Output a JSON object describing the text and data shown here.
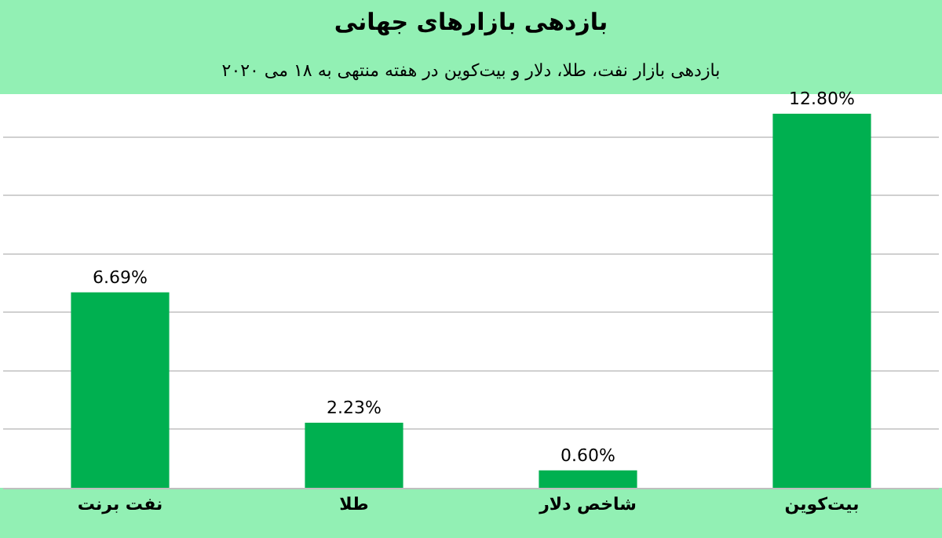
{
  "chart_data": {
    "type": "bar",
    "title": "بازدهی بازارهای جهانی",
    "subtitle": "بازدهی بازار نفت، طلا، دلار و بیت‌کوین در هفته منتهی به ۱۸ می ۲۰۲۰",
    "categories": [
      "نفت برنت",
      "طلا",
      "شاخص دلار",
      "بیت‌کوین"
    ],
    "values": [
      6.69,
      2.23,
      0.6,
      12.8
    ],
    "value_labels": [
      "6.69%",
      "2.23%",
      "0.60%",
      "12.80%"
    ],
    "color": "#00b050",
    "yticks": [
      {
        "value": 0,
        "label": null
      },
      {
        "value": 2,
        "label": null
      },
      {
        "value": 4,
        "label": null
      },
      {
        "value": 6,
        "label": null
      },
      {
        "value": 8,
        "label": null
      },
      {
        "value": 10,
        "label": null
      },
      {
        "value": 12,
        "label": null
      }
    ],
    "grid": "y",
    "tick_labels": "x",
    "legend": false
  }
}
